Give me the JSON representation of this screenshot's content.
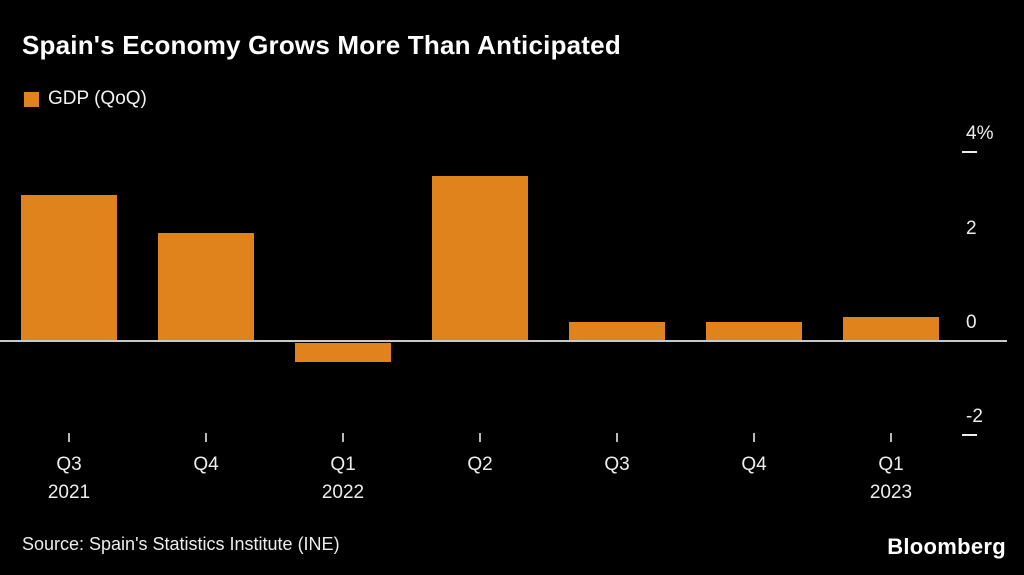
{
  "title": "Spain's Economy Grows More Than Anticipated",
  "legend": {
    "label": "GDP (QoQ)",
    "color": "#E0831C"
  },
  "source": "Source: Spain's Statistics Institute (INE)",
  "brand": "Bloomberg",
  "colors": {
    "background": "#000000",
    "bar": "#E0831C",
    "axis_text": "#EDEDEB",
    "zero_line": "#C9C9C6"
  },
  "chart_data": {
    "type": "bar",
    "title": "Spain's Economy Grows More Than Anticipated",
    "categories": [
      "Q3 2021",
      "Q4 2021",
      "Q1 2022",
      "Q2 2022",
      "Q3 2022",
      "Q4 2022",
      "Q1 2023"
    ],
    "series": [
      {
        "name": "GDP (QoQ)",
        "color": "#E0831C",
        "values": [
          3.1,
          2.3,
          -0.4,
          3.5,
          0.4,
          0.4,
          0.5
        ]
      }
    ],
    "x_tick_labels": [
      {
        "quarter": "Q3",
        "year": "2021"
      },
      {
        "quarter": "Q4",
        "year": ""
      },
      {
        "quarter": "Q1",
        "year": "2022"
      },
      {
        "quarter": "Q2",
        "year": ""
      },
      {
        "quarter": "Q3",
        "year": ""
      },
      {
        "quarter": "Q4",
        "year": ""
      },
      {
        "quarter": "Q1",
        "year": "2023"
      }
    ],
    "y_axis": {
      "side": "right",
      "unit": "%",
      "range": [
        -2.6,
        4.4
      ],
      "ticks": [
        {
          "label": "4%",
          "value": 4,
          "dash": true
        },
        {
          "label": "2",
          "value": 2,
          "dash": false
        },
        {
          "label": "0",
          "value": 0,
          "dash": false
        },
        {
          "label": "-2",
          "value": -2,
          "dash": true
        }
      ]
    },
    "grid": false,
    "legend_position": "top-left",
    "source": "Source: Spain's Statistics Institute (INE)"
  }
}
